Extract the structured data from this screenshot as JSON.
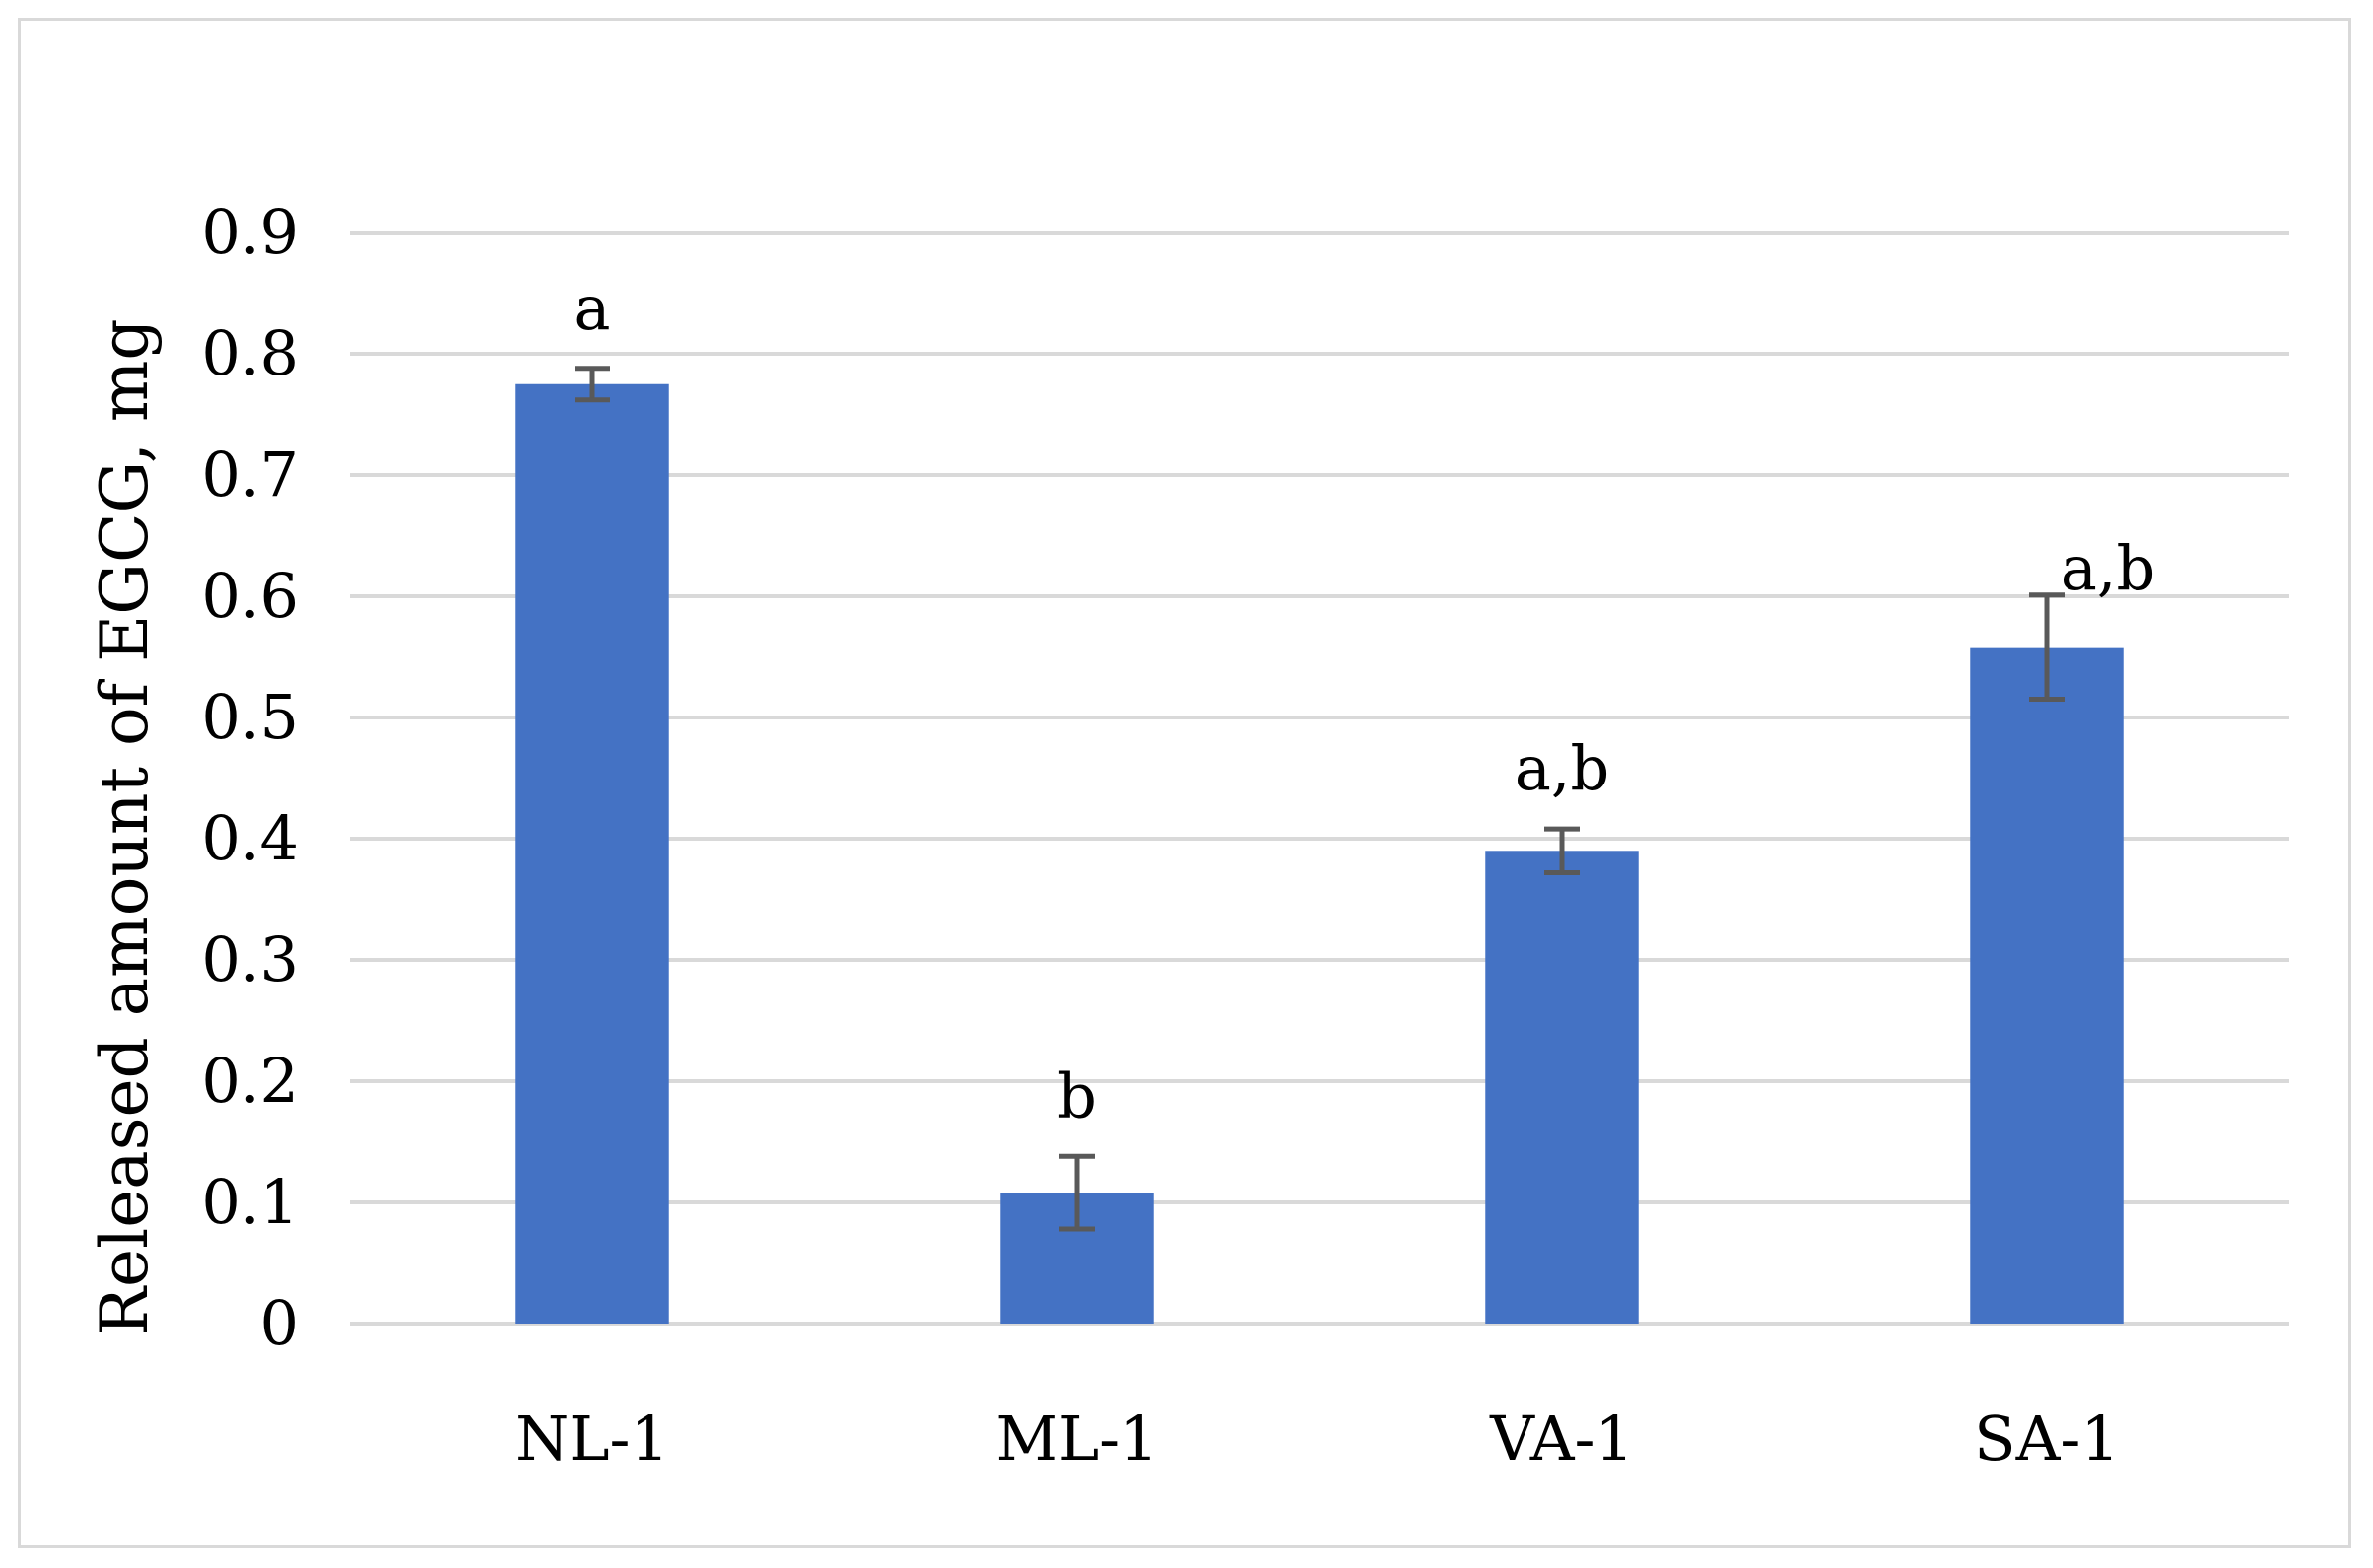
{
  "chart_data": {
    "type": "bar",
    "title": "",
    "xlabel": "",
    "ylabel": "Released amount of EGCG, mg",
    "categories": [
      "NL-1",
      "ML-1",
      "VA-1",
      "SA-1"
    ],
    "values": [
      0.775,
      0.108,
      0.39,
      0.558
    ],
    "errors": [
      0.013,
      0.03,
      0.018,
      0.043
    ],
    "significance_labels": [
      "a",
      "b",
      "a,b",
      "a,b"
    ],
    "ylim": [
      0,
      0.9
    ],
    "yticks": [
      0,
      0.1,
      0.2,
      0.3,
      0.4,
      0.5,
      0.6,
      0.7,
      0.8,
      0.9
    ],
    "ytick_labels": [
      "0",
      "0.1",
      "0.2",
      "0.3",
      "0.4",
      "0.5",
      "0.6",
      "0.7",
      "0.8",
      "0.9"
    ],
    "grid": true,
    "legend": "none",
    "colors": {
      "bar": "#4472c4",
      "error_bar": "#595959",
      "grid": "#d9d9d9",
      "frame": "#d9d9d9"
    }
  }
}
